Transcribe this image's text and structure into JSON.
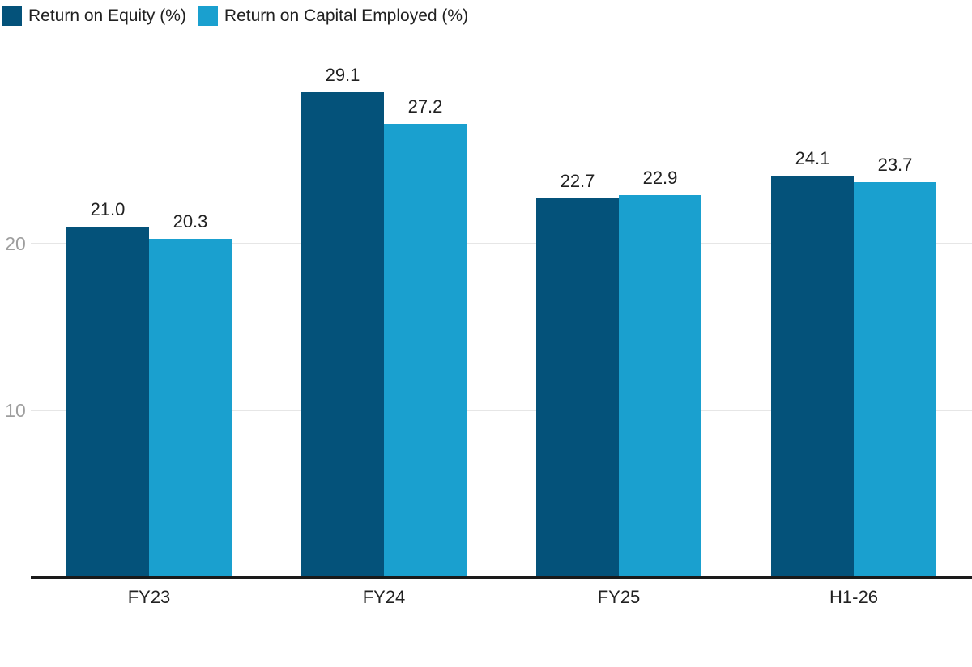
{
  "chart_data": {
    "type": "bar",
    "title": "",
    "categories": [
      "FY23",
      "FY24",
      "FY25",
      "H1-26"
    ],
    "series": [
      {
        "name": "Return on Equity (%)",
        "color": "#04527A",
        "values": [
          21.0,
          29.1,
          22.7,
          24.1
        ],
        "labels": [
          "21.0",
          "29.1",
          "22.7",
          "24.1"
        ]
      },
      {
        "name": "Return on Capital Employed (%)",
        "color": "#1AA0CF",
        "values": [
          20.3,
          27.2,
          22.9,
          23.7
        ],
        "labels": [
          "20.3",
          "27.2",
          "22.9",
          "23.7"
        ]
      }
    ],
    "yticks": [
      10,
      20
    ],
    "ylim": [
      0,
      32
    ],
    "grid": "horizontal",
    "legend_position": "top-left",
    "colors": {
      "grid": "#E6E6E6",
      "axis": "#1A1A1A",
      "tick_label": "#9E9E9E",
      "label": "#212121",
      "background": "#FFFFFF"
    }
  }
}
